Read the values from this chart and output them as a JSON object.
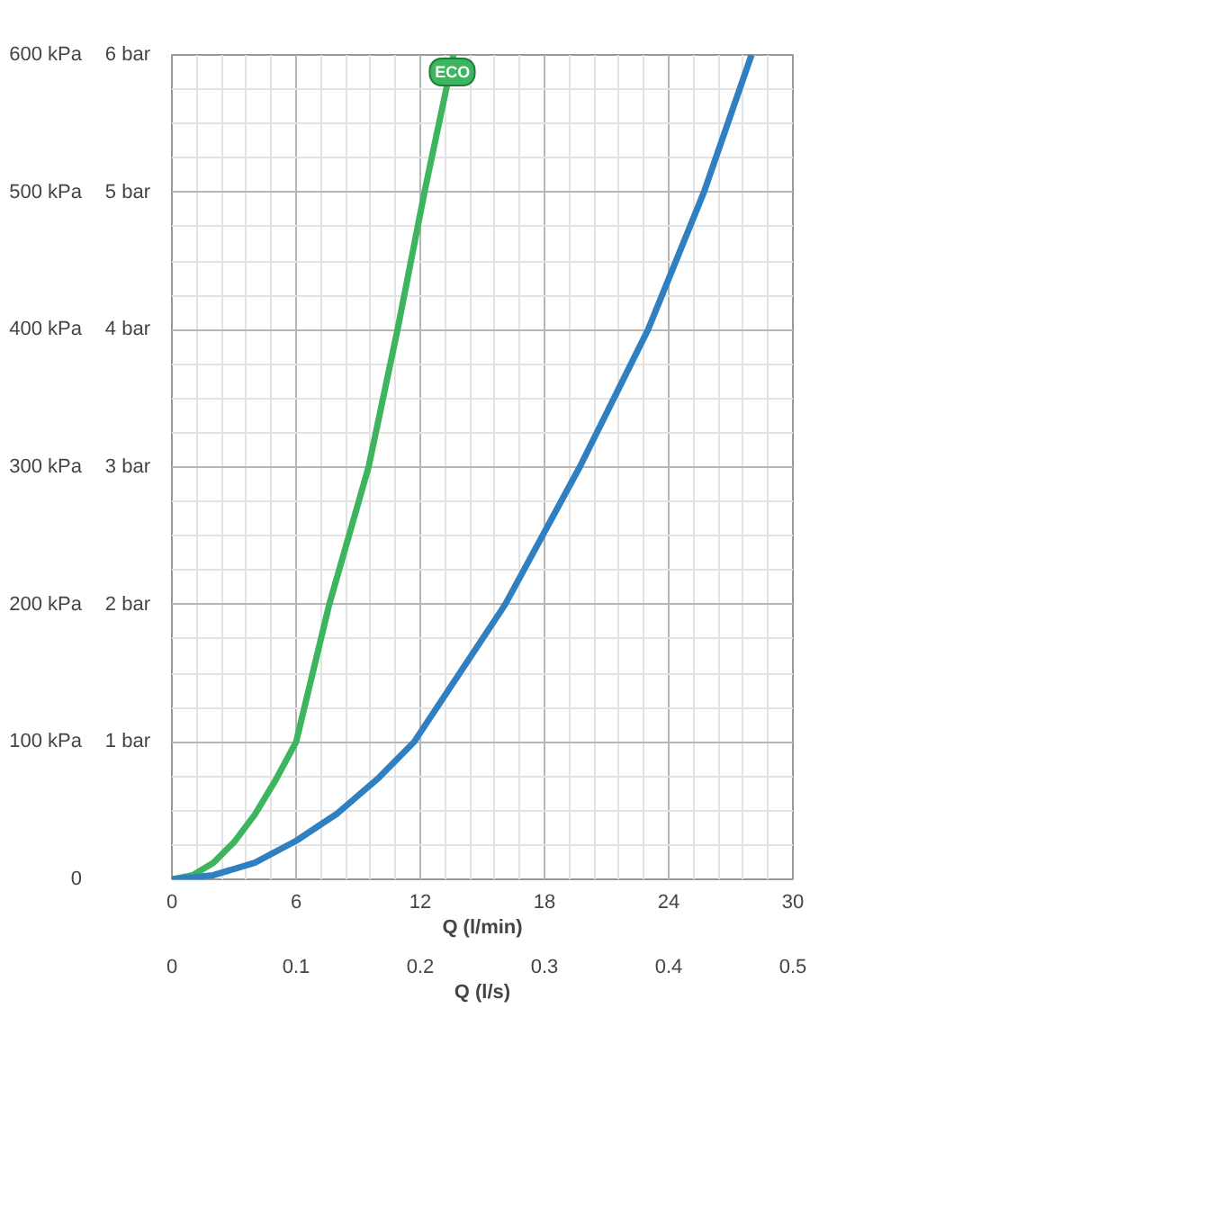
{
  "chart_data": {
    "type": "line",
    "xlabel": "Q (l/min)",
    "x2label": "Q (l/s)",
    "xlim": [
      0,
      30
    ],
    "xticks": [
      0,
      6,
      12,
      18,
      24,
      30
    ],
    "x2lim": [
      0,
      0.5
    ],
    "x2ticks": [
      0,
      0.1,
      0.2,
      0.3,
      0.4,
      0.5
    ],
    "ylim": [
      0,
      600
    ],
    "yticks": [
      0,
      {
        "value": 100,
        "label": "100 kPa"
      },
      {
        "value": 200,
        "label": "200 kPa"
      },
      {
        "value": 300,
        "label": "300 kPa"
      },
      {
        "value": 400,
        "label": "400 kPa"
      },
      {
        "value": 500,
        "label": "500 kPa"
      },
      {
        "value": 600,
        "label": "600 kPa"
      }
    ],
    "y2lim": [
      0,
      6
    ],
    "y2ticks": [
      {
        "value": 1,
        "label": "1 bar"
      },
      {
        "value": 2,
        "label": "2 bar"
      },
      {
        "value": 3,
        "label": "3 bar"
      },
      {
        "value": 4,
        "label": "4 bar"
      },
      {
        "value": 5,
        "label": "5 bar"
      },
      {
        "value": 6,
        "label": "6 bar"
      }
    ],
    "grid": true,
    "legend": false,
    "marker": "none",
    "line_style": "solid",
    "series": [
      {
        "name": "ECO",
        "color": "#3cb55e",
        "x": [
          0,
          1,
          2,
          3,
          4,
          5,
          6,
          7.6,
          9.5,
          10.9,
          12.2,
          13.6
        ],
        "values": [
          0,
          3,
          12,
          27,
          47,
          72,
          100,
          200,
          300,
          400,
          500,
          600
        ]
      },
      {
        "color": "#2f7fc1",
        "x": [
          0,
          2,
          4,
          6,
          8,
          10,
          11.7,
          16.1,
          19.7,
          23,
          25.7,
          28
        ],
        "values": [
          0,
          3,
          12,
          28,
          48,
          74,
          100,
          200,
          300,
          400,
          500,
          600
        ]
      }
    ]
  }
}
